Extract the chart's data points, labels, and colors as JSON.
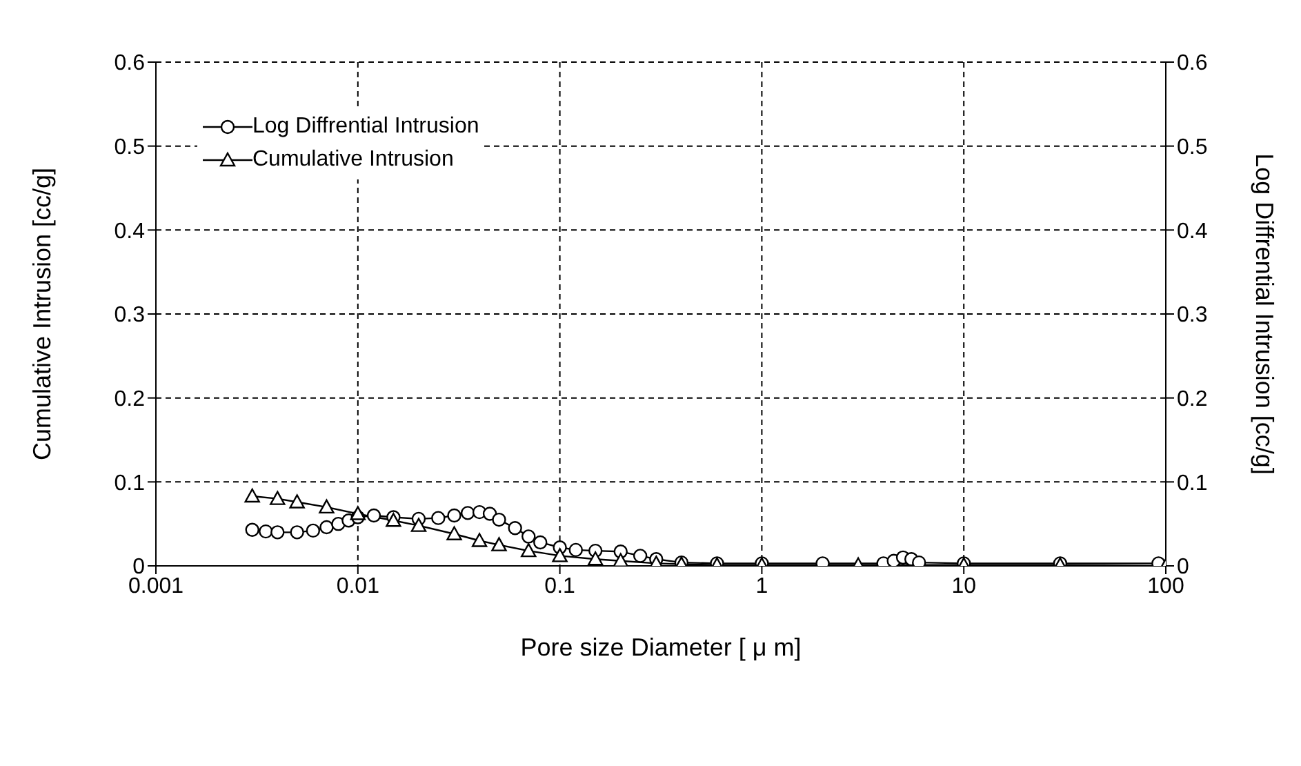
{
  "chart_data": {
    "type": "line",
    "xlabel": "Pore size Diameter [ μ m]",
    "ylabel": "Cumulative Intrusion [cc/g]",
    "y2label": "Log Diffrential Intrusion [cc/g]",
    "log": "x",
    "xlim": [
      0.001,
      100
    ],
    "xticks": [
      0.001,
      0.01,
      0.1,
      1,
      10,
      100
    ],
    "ylim": [
      0,
      0.6
    ],
    "yticks": [
      0,
      0.1,
      0.2,
      0.3,
      0.4,
      0.5,
      0.6
    ],
    "y2lim": [
      0,
      0.6
    ],
    "y2ticks": [
      0,
      0.1,
      0.2,
      0.3,
      0.4,
      0.5,
      0.6
    ],
    "grid": true,
    "legend": "top left",
    "line_style": "solid",
    "series": [
      {
        "name": "Log Diffrential Intrusion",
        "color": "#000000",
        "axis": "y2",
        "marker": "circle",
        "x": [
          0.003,
          0.0035,
          0.004,
          0.005,
          0.006,
          0.007,
          0.008,
          0.009,
          0.01,
          0.012,
          0.015,
          0.02,
          0.025,
          0.03,
          0.035,
          0.04,
          0.045,
          0.05,
          0.06,
          0.07,
          0.08,
          0.1,
          0.12,
          0.15,
          0.2,
          0.25,
          0.3,
          0.4,
          0.6,
          1,
          2,
          4,
          4.5,
          5,
          5.5,
          6,
          10,
          30,
          92
        ],
        "values": [
          0.043,
          0.041,
          0.04,
          0.04,
          0.042,
          0.046,
          0.05,
          0.054,
          0.058,
          0.06,
          0.058,
          0.056,
          0.057,
          0.06,
          0.063,
          0.064,
          0.062,
          0.055,
          0.045,
          0.035,
          0.028,
          0.022,
          0.019,
          0.018,
          0.017,
          0.012,
          0.008,
          0.004,
          0.003,
          0.003,
          0.003,
          0.003,
          0.006,
          0.01,
          0.008,
          0.004,
          0.003,
          0.003,
          0.003
        ]
      },
      {
        "name": "Cumulative Intrusion",
        "color": "#000000",
        "marker": "triangle",
        "x": [
          0.003,
          0.004,
          0.005,
          0.007,
          0.01,
          0.015,
          0.02,
          0.03,
          0.04,
          0.05,
          0.07,
          0.1,
          0.15,
          0.2,
          0.3,
          0.4,
          0.6,
          1,
          3,
          10,
          30,
          100
        ],
        "values": [
          0.083,
          0.08,
          0.076,
          0.07,
          0.062,
          0.054,
          0.048,
          0.038,
          0.03,
          0.025,
          0.018,
          0.012,
          0.008,
          0.006,
          0.003,
          0.002,
          0.001,
          0.001,
          0.001,
          0.001,
          0.001,
          0
        ]
      }
    ]
  }
}
